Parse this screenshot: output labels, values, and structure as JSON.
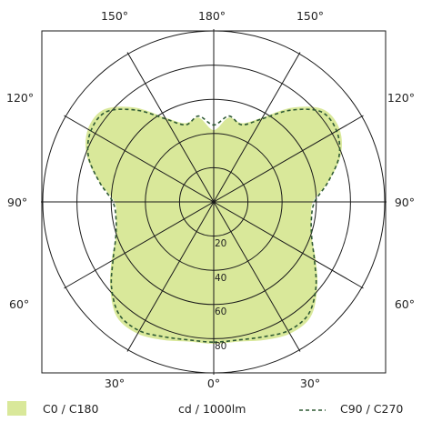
{
  "chart_data": {
    "type": "polar",
    "angle_labels": {
      "top_left": "150°",
      "top_center": "180°",
      "top_right": "150°",
      "upper_left": "120°",
      "upper_right": "120°",
      "middle_left": "90°",
      "middle_right": "90°",
      "lower_left": "60°",
      "lower_right": "60°",
      "bottom_left": "30°",
      "bottom_center": "0°",
      "bottom_right": "30°"
    },
    "radial_ticks": [
      "20",
      "40",
      "60",
      "80"
    ],
    "radial_tick_values": [
      20,
      40,
      60,
      80
    ],
    "radial_max": 100,
    "unit": "cd / 1000lm",
    "legend": [
      {
        "label": "C0 / C180",
        "style": "filled",
        "color": "#d9e89a"
      },
      {
        "label": "C90 / C270",
        "style": "dashed",
        "color": "#2f5a34"
      }
    ],
    "series": [
      {
        "name": "C0 / C180",
        "angles_deg": [
          0,
          10,
          20,
          30,
          40,
          50,
          60,
          70,
          80,
          90,
          100,
          110,
          120,
          130,
          140,
          150,
          160,
          170,
          180
        ],
        "values": [
          83,
          83,
          86,
          89,
          88,
          79,
          69,
          61,
          58,
          58,
          68,
          79,
          85,
          84,
          72,
          57,
          49,
          50,
          42
        ]
      },
      {
        "name": "C90 / C270",
        "angles_deg": [
          0,
          10,
          20,
          30,
          40,
          50,
          60,
          70,
          80,
          90,
          100,
          110,
          120,
          130,
          140,
          150,
          160,
          170,
          180
        ],
        "values": [
          82,
          82,
          84,
          87,
          86,
          78,
          68,
          61,
          58,
          59,
          68,
          78,
          83,
          82,
          70,
          56,
          48,
          51,
          45
        ]
      }
    ],
    "colors": {
      "fill": "#d9e89a",
      "dashed": "#2f5a34",
      "grid": "#1a1a1a"
    }
  }
}
